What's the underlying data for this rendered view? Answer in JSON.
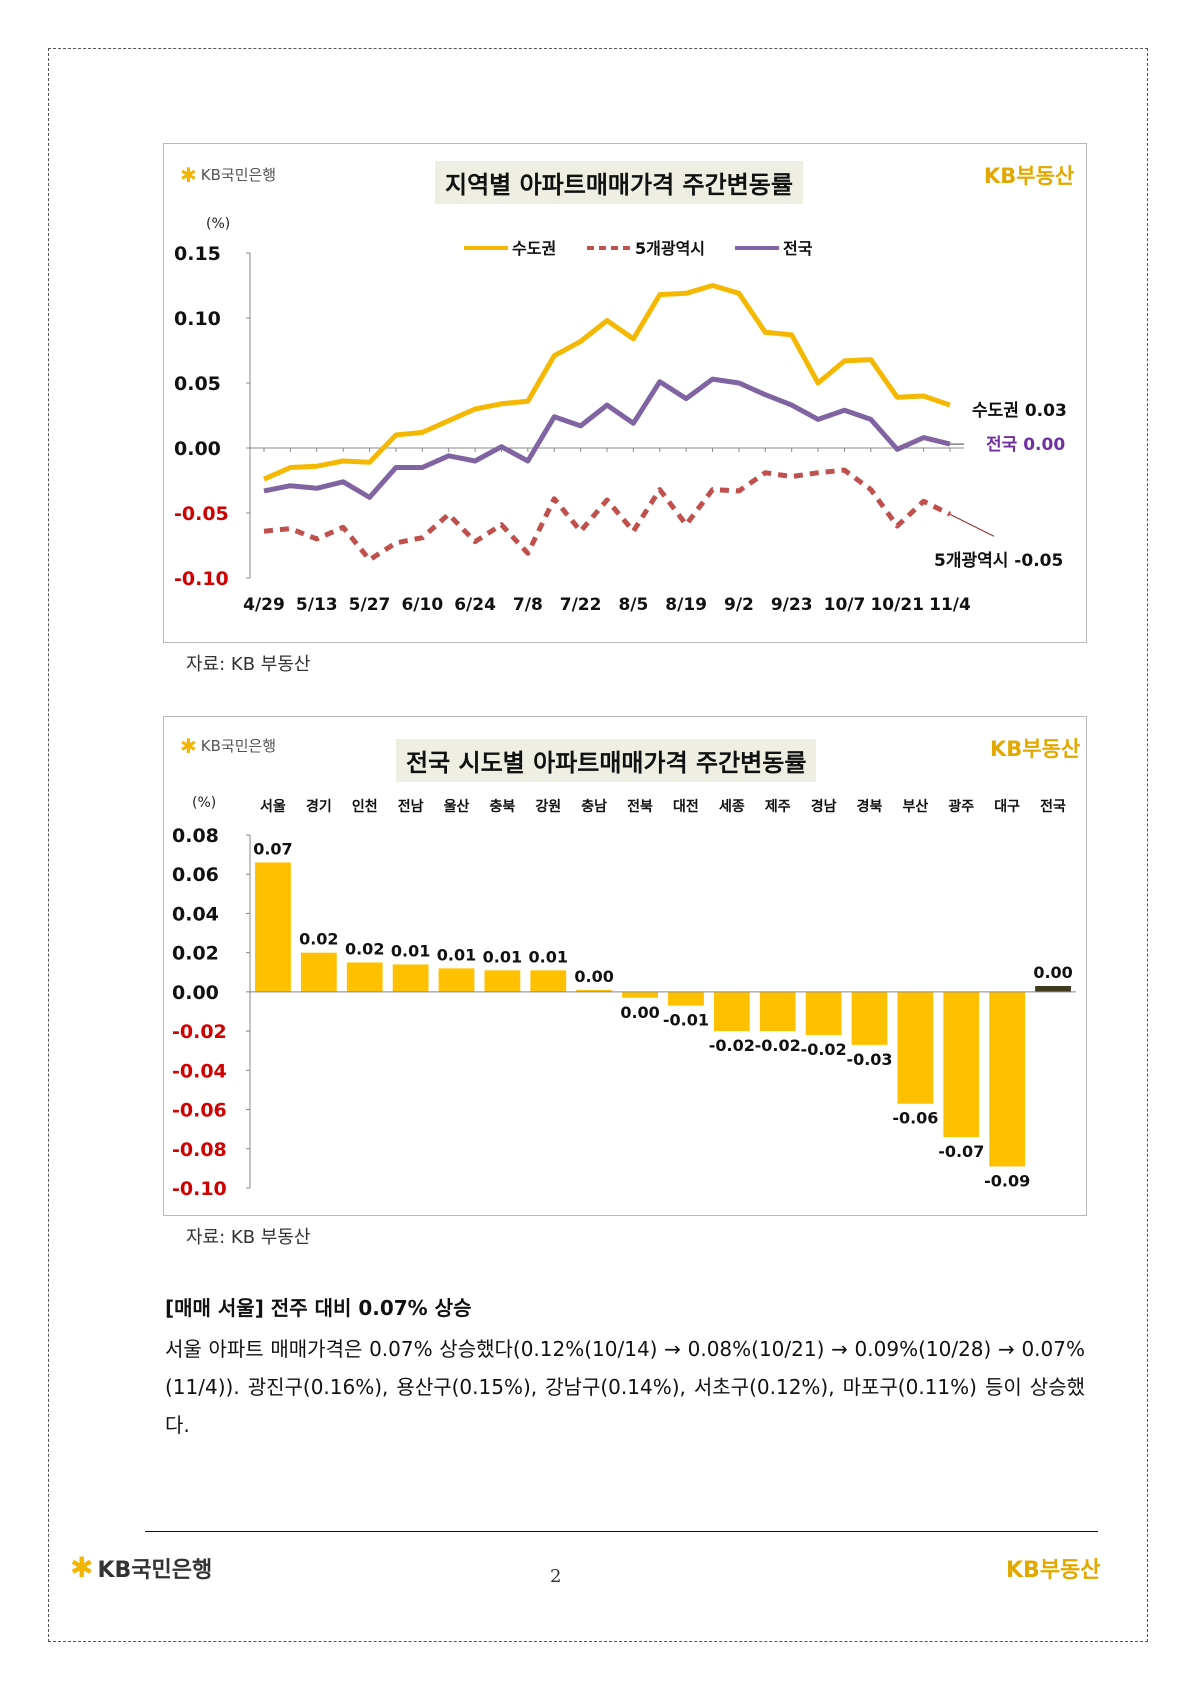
{
  "brand": {
    "bank_logo": "KB국민은행",
    "real_estate_logo": "KB부동산",
    "star_icon": "kb-star-icon",
    "accent": "#f3b500"
  },
  "chart1": {
    "title": "지역별 아파트매매가격 주간변동률",
    "source": "자료: KB 부동산",
    "end_labels": {
      "sudo": "수도권 0.03",
      "national": "전국 0.00",
      "metro5": "5개광역시 -0.05"
    }
  },
  "chart2": {
    "title": "전국 시도별 아파트매매가격 주간변동률",
    "source": "자료: KB 부동산"
  },
  "chart_data": [
    {
      "type": "line",
      "title": "지역별 아파트매매가격 주간변동률",
      "ylabel": "(%)",
      "ylim": [
        -0.1,
        0.15
      ],
      "yticks": [
        0.15,
        0.1,
        0.05,
        0.0,
        -0.05,
        -0.1
      ],
      "ytick_labels": [
        "0.15",
        "0.10",
        "0.05",
        "0.00",
        "-0.05",
        "-0.10"
      ],
      "x_tick_labels": [
        "4/29",
        "5/13",
        "5/27",
        "6/10",
        "6/24",
        "7/8",
        "7/22",
        "8/5",
        "8/19",
        "9/2",
        "9/23",
        "10/7",
        "10/21",
        "11/4"
      ],
      "legend_position": "top-center",
      "series": [
        {
          "name": "수도권",
          "color": "#f5b800",
          "dash": "solid",
          "values": [
            -0.024,
            -0.015,
            -0.014,
            -0.01,
            -0.011,
            0.01,
            0.012,
            0.021,
            0.03,
            0.034,
            0.036,
            0.071,
            0.082,
            0.098,
            0.084,
            0.118,
            0.119,
            0.125,
            0.119,
            0.089,
            0.087,
            0.05,
            0.067,
            0.068,
            0.039,
            0.04,
            0.033
          ]
        },
        {
          "name": "5개광역시",
          "color": "#c0504d",
          "dash": "dashed",
          "values": [
            -0.064,
            -0.062,
            -0.07,
            -0.061,
            -0.086,
            -0.073,
            -0.069,
            -0.051,
            -0.072,
            -0.059,
            -0.081,
            -0.039,
            -0.064,
            -0.04,
            -0.064,
            -0.032,
            -0.059,
            -0.032,
            -0.033,
            -0.019,
            -0.022,
            -0.019,
            -0.017,
            -0.032,
            -0.06,
            -0.041,
            -0.051
          ]
        },
        {
          "name": "전국",
          "color": "#8064a2",
          "dash": "solid",
          "values": [
            -0.033,
            -0.029,
            -0.031,
            -0.026,
            -0.038,
            -0.015,
            -0.015,
            -0.006,
            -0.01,
            0.001,
            -0.01,
            0.024,
            0.017,
            0.033,
            0.019,
            0.051,
            0.038,
            0.053,
            0.05,
            0.041,
            0.033,
            0.022,
            0.029,
            0.022,
            -0.001,
            0.008,
            0.003
          ]
        }
      ]
    },
    {
      "type": "bar",
      "title": "전국 시도별 아파트매매가격 주간변동률",
      "ylabel": "(%)",
      "ylim": [
        -0.1,
        0.08
      ],
      "yticks": [
        0.08,
        0.06,
        0.04,
        0.02,
        0.0,
        -0.02,
        -0.04,
        -0.06,
        -0.08,
        -0.1
      ],
      "ytick_labels": [
        "0.08",
        "0.06",
        "0.04",
        "0.02",
        "0.00",
        "-0.02",
        "-0.04",
        "-0.06",
        "-0.08",
        "-0.10"
      ],
      "categories": [
        "서울",
        "경기",
        "인천",
        "전남",
        "울산",
        "충북",
        "강원",
        "충남",
        "전북",
        "대전",
        "세종",
        "제주",
        "경남",
        "경북",
        "부산",
        "광주",
        "대구",
        "전국"
      ],
      "values": [
        0.066,
        0.02,
        0.015,
        0.014,
        0.012,
        0.011,
        0.011,
        0.001,
        -0.003,
        -0.007,
        -0.02,
        -0.02,
        -0.022,
        -0.027,
        -0.057,
        -0.074,
        -0.089,
        0.003
      ],
      "data_labels": [
        "0.07",
        "0.02",
        "0.02",
        "0.01",
        "0.01",
        "0.01",
        "0.01",
        "0.00",
        "0.00",
        "-0.01",
        "-0.02",
        "-0.02",
        "-0.02",
        "-0.03",
        "-0.06",
        "-0.07",
        "-0.09",
        "0.00"
      ],
      "bar_color": "#ffc000",
      "highlight_color": "#3f3a1e"
    }
  ],
  "section": {
    "heading": "[매매 서울] 전주 대비 0.07% 상승",
    "paragraph": "서울 아파트 매매가격은 0.07% 상승했다(0.12%(10/14) → 0.08%(10/21) → 0.09%(10/28) → 0.07%(11/4)). 광진구(0.16%), 용산구(0.15%), 강남구(0.14%), 서초구(0.12%), 마포구(0.11%) 등이 상승했다."
  },
  "footer": {
    "bank_logo": "KB국민은행",
    "page_number": "2",
    "real_estate_logo": "KB부동산"
  }
}
